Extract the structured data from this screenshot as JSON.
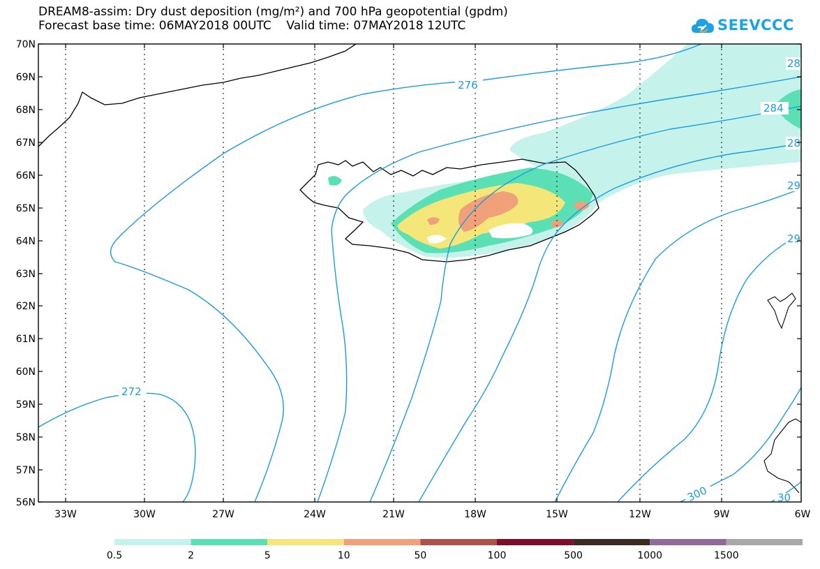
{
  "title": {
    "line1": "DREAM8-assim: Dry dust deposition (mg/m²) and 700 hPa geopotential (gpdm)",
    "line2": "Forecast base time: 06MAY2018 00UTC    Valid time: 07MAY2018 12UTC"
  },
  "logo": {
    "text": "SEEVCCC",
    "icon": "cloud-icon"
  },
  "map": {
    "lat_labels": [
      "70N",
      "69N",
      "68N",
      "67N",
      "66N",
      "65N",
      "64N",
      "63N",
      "62N",
      "61N",
      "60N",
      "59N",
      "58N",
      "57N",
      "56N"
    ],
    "lon_labels": [
      "33W",
      "30W",
      "27W",
      "24W",
      "21W",
      "18W",
      "15W",
      "12W",
      "9W",
      "6W"
    ],
    "lat_range": [
      56,
      70
    ],
    "lon_range": [
      -34.5,
      -6
    ],
    "grid": true,
    "contour_labels": [
      "276",
      "284",
      "272",
      "300",
      "28",
      "28",
      "29",
      "29",
      "30"
    ]
  },
  "colorbar": {
    "labels": [
      "0.5",
      "2",
      "5",
      "10",
      "50",
      "100",
      "500",
      "1000",
      "1500"
    ],
    "colors": [
      "#c5f3ec",
      "#5ae0b4",
      "#f5e67a",
      "#f0a17a",
      "#a9534b",
      "#7d0f2c",
      "#3a2a22",
      "#8f6b98",
      "#a8a8a8"
    ]
  },
  "colors": {
    "contour": "#1a9be0",
    "coast": "#000000",
    "logo": "#1ba3e6"
  }
}
